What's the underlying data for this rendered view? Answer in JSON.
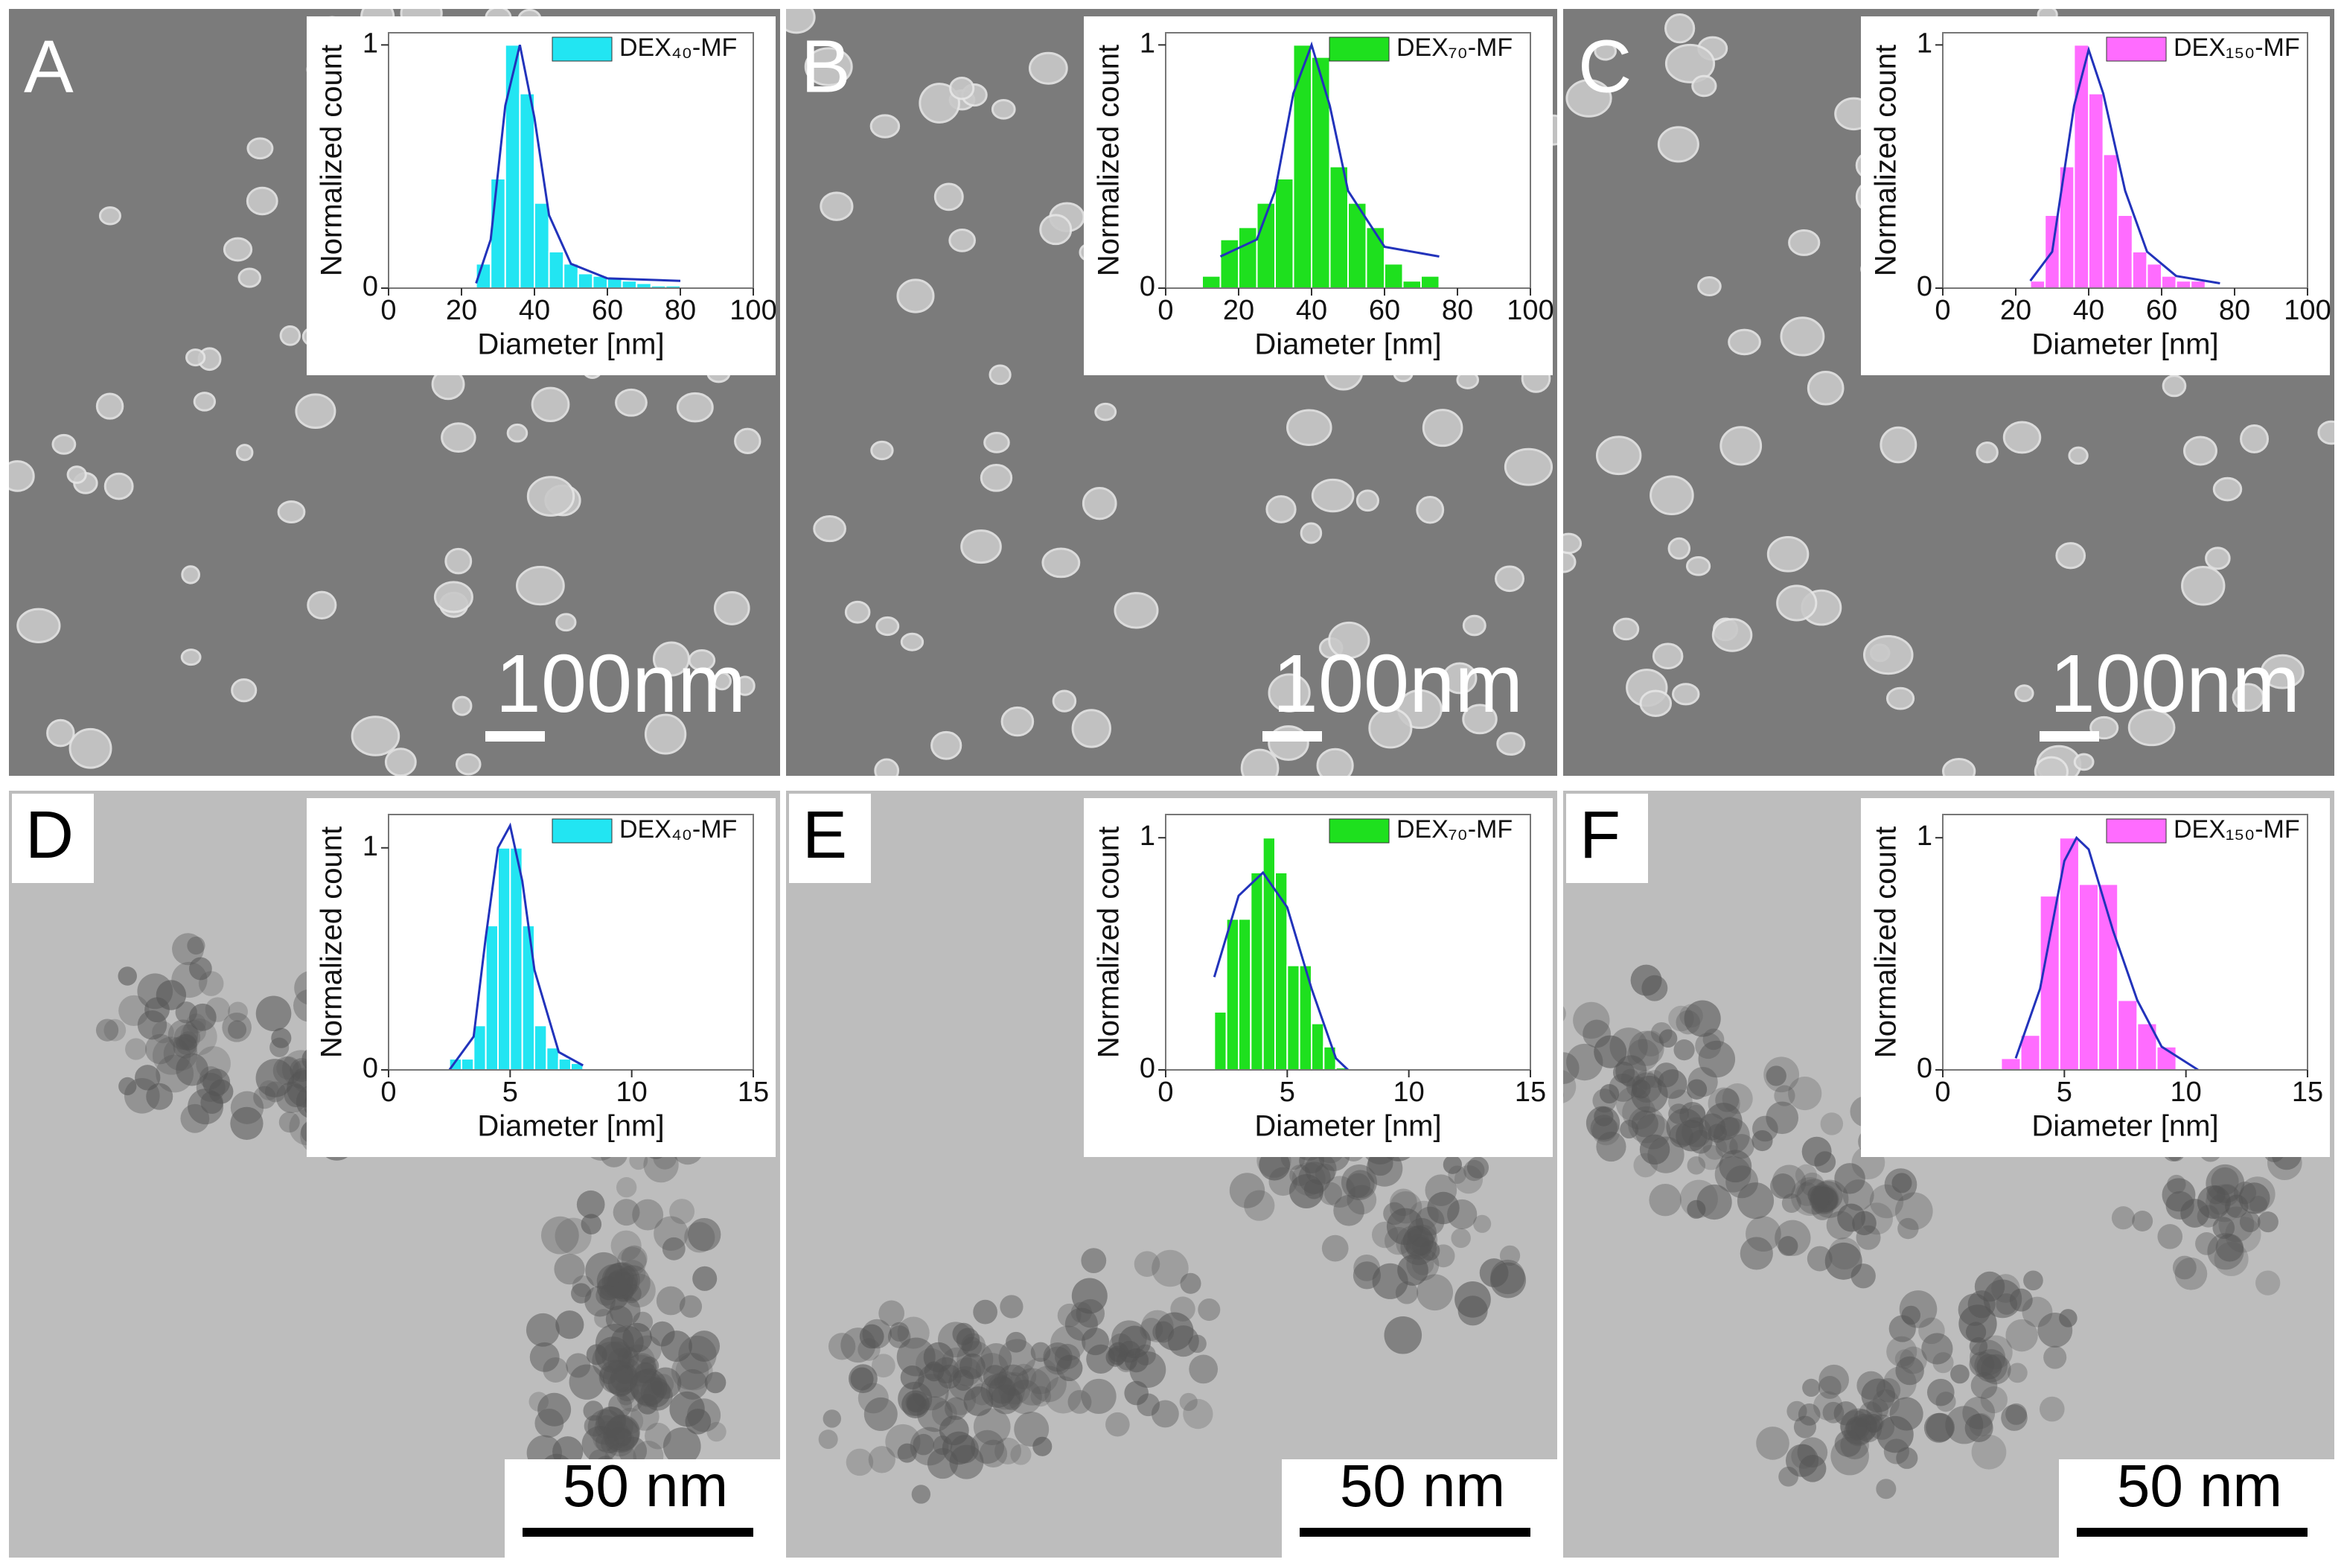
{
  "panels": [
    {
      "label": "A",
      "scale_bar": "100nm"
    },
    {
      "label": "B",
      "scale_bar": "100nm"
    },
    {
      "label": "C",
      "scale_bar": "100nm"
    },
    {
      "label": "D",
      "scale_bar": "50 nm"
    },
    {
      "label": "E",
      "scale_bar": "50 nm"
    },
    {
      "label": "F",
      "scale_bar": "50 nm"
    }
  ],
  "chart_data": [
    {
      "type": "histogram",
      "x_label": "Diameter [nm]",
      "y_label": "Normalized count",
      "legend": "top-right",
      "bins": [
        24,
        28,
        32,
        36,
        40,
        44,
        48,
        52,
        56,
        60,
        64,
        68,
        72,
        76,
        80
      ],
      "series": [
        {
          "name": "DEX₄₀-MF",
          "color": "#22e5f2",
          "values": [
            0.1,
            0.45,
            1.0,
            0.8,
            0.35,
            0.15,
            0.1,
            0.06,
            0.05,
            0.04,
            0.03,
            0.02,
            0.01,
            0.01
          ]
        }
      ],
      "fit": {
        "color": "#2233bb",
        "x": [
          24,
          28,
          32,
          36,
          40,
          44,
          50,
          60,
          80
        ],
        "values": [
          0.02,
          0.2,
          0.75,
          1.0,
          0.7,
          0.3,
          0.1,
          0.04,
          0.03
        ]
      },
      "xlim": [
        0,
        100
      ],
      "xticks": [
        0,
        20,
        40,
        60,
        80,
        100
      ],
      "ylim": [
        0,
        1.05
      ],
      "yticks": [
        0,
        1
      ]
    },
    {
      "type": "histogram",
      "x_label": "Diameter [nm]",
      "y_label": "Normalized count",
      "legend": "top-right",
      "bins": [
        10,
        15,
        20,
        25,
        30,
        35,
        40,
        45,
        50,
        55,
        60,
        65,
        70,
        75
      ],
      "series": [
        {
          "name": "DEX₇₀-MF",
          "color": "#1ee01e",
          "values": [
            0.05,
            0.2,
            0.25,
            0.35,
            0.45,
            1.0,
            0.95,
            0.5,
            0.35,
            0.25,
            0.1,
            0.03,
            0.05
          ]
        }
      ],
      "fit": {
        "color": "#2233bb",
        "x": [
          15,
          25,
          30,
          35,
          40,
          45,
          50,
          60,
          75
        ],
        "values": [
          0.13,
          0.2,
          0.4,
          0.8,
          1.0,
          0.75,
          0.4,
          0.17,
          0.13
        ]
      },
      "xlim": [
        0,
        100
      ],
      "xticks": [
        0,
        20,
        40,
        60,
        80,
        100
      ],
      "ylim": [
        0,
        1.05
      ],
      "yticks": [
        0,
        1
      ]
    },
    {
      "type": "histogram",
      "x_label": "Diameter [nm]",
      "y_label": "Normalized count",
      "legend": "top-right",
      "bins": [
        24,
        28,
        32,
        36,
        40,
        44,
        48,
        52,
        56,
        60,
        64,
        68,
        72
      ],
      "series": [
        {
          "name": "DEX₁₅₀-MF",
          "color": "#ff6cff",
          "values": [
            0.03,
            0.3,
            0.5,
            1.0,
            0.8,
            0.55,
            0.3,
            0.15,
            0.1,
            0.05,
            0.03,
            0.03
          ]
        }
      ],
      "fit": {
        "color": "#2233bb",
        "x": [
          24,
          30,
          36,
          40,
          44,
          50,
          56,
          64,
          76
        ],
        "values": [
          0.03,
          0.15,
          0.75,
          0.98,
          0.8,
          0.4,
          0.15,
          0.05,
          0.02
        ]
      },
      "xlim": [
        0,
        100
      ],
      "xticks": [
        0,
        20,
        40,
        60,
        80,
        100
      ],
      "ylim": [
        0,
        1.05
      ],
      "yticks": [
        0,
        1
      ]
    },
    {
      "type": "histogram",
      "x_label": "Diameter [nm]",
      "y_label": "Normalized count",
      "legend": "top-right",
      "bins": [
        2.5,
        3,
        3.5,
        4,
        4.5,
        5,
        5.5,
        6,
        6.5,
        7,
        7.5,
        8
      ],
      "series": [
        {
          "name": "DEX₄₀-MF",
          "color": "#22e5f2",
          "values": [
            0.05,
            0.05,
            0.2,
            0.65,
            1.0,
            1.0,
            0.65,
            0.2,
            0.1,
            0.05,
            0.03
          ]
        }
      ],
      "fit": {
        "color": "#2233bb",
        "x": [
          2.5,
          3.5,
          4,
          4.5,
          5,
          5.5,
          6,
          7,
          8
        ],
        "values": [
          0.0,
          0.15,
          0.6,
          1.0,
          1.1,
          0.85,
          0.45,
          0.08,
          0.02
        ]
      },
      "xlim": [
        0,
        15
      ],
      "xticks": [
        0,
        5,
        10,
        15
      ],
      "ylim": [
        0,
        1.15
      ],
      "yticks": [
        0,
        1
      ]
    },
    {
      "type": "histogram",
      "x_label": "Diameter [nm]",
      "y_label": "Normalized count",
      "legend": "top-right",
      "bins": [
        2,
        2.5,
        3,
        3.5,
        4,
        4.5,
        5,
        5.5,
        6,
        6.5,
        7,
        7.5
      ],
      "series": [
        {
          "name": "DEX₇₀-MF",
          "color": "#1ee01e",
          "values": [
            0.25,
            0.65,
            0.65,
            0.85,
            1.0,
            0.85,
            0.45,
            0.45,
            0.2,
            0.1,
            0.01
          ]
        }
      ],
      "fit": {
        "color": "#2233bb",
        "x": [
          2,
          3,
          4,
          5,
          6,
          7,
          7.5
        ],
        "values": [
          0.4,
          0.75,
          0.85,
          0.7,
          0.35,
          0.05,
          0.0
        ]
      },
      "xlim": [
        0,
        15
      ],
      "xticks": [
        0,
        5,
        10,
        15
      ],
      "ylim": [
        0,
        1.1
      ],
      "yticks": [
        0,
        1
      ]
    },
    {
      "type": "histogram",
      "x_label": "Diameter [nm]",
      "y_label": "Normalized count",
      "legend": "top-right",
      "bins": [
        2.4,
        3.2,
        4.0,
        4.8,
        5.6,
        6.4,
        7.2,
        8.0,
        8.8,
        9.6
      ],
      "series": [
        {
          "name": "DEX₁₅₀-MF",
          "color": "#ff6cff",
          "values": [
            0.05,
            0.15,
            0.75,
            1.0,
            0.8,
            0.8,
            0.3,
            0.2,
            0.1
          ]
        }
      ],
      "fit": {
        "color": "#2233bb",
        "x": [
          3,
          4,
          5,
          5.5,
          6,
          7,
          8,
          9,
          10.5
        ],
        "values": [
          0.05,
          0.35,
          0.9,
          1.0,
          0.95,
          0.6,
          0.3,
          0.1,
          0.0
        ]
      },
      "xlim": [
        0,
        15
      ],
      "xticks": [
        0,
        5,
        10,
        15
      ],
      "ylim": [
        0,
        1.1
      ],
      "yticks": [
        0,
        1
      ]
    }
  ]
}
